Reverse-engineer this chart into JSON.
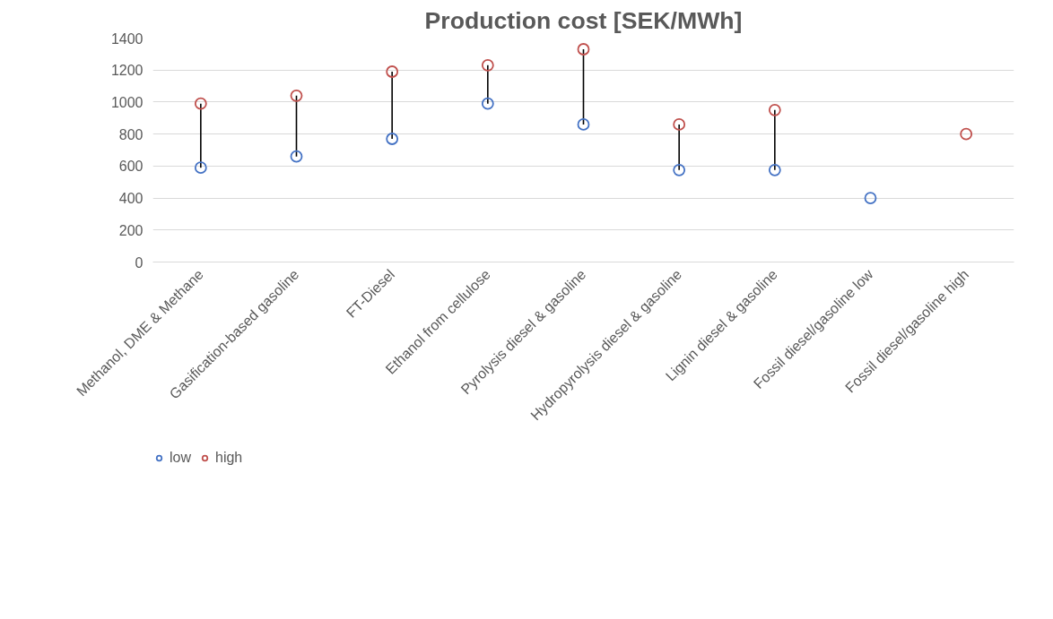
{
  "chart_data": {
    "type": "scatter",
    "title": "Production cost [SEK/MWh]",
    "categories": [
      "Methanol, DME & Methane",
      "Gasification-based gasoline",
      "FT-Diesel",
      "Ethanol from cellulose",
      "Pyrolysis diesel & gasoline",
      "Hydropyrolysis diesel & gasoline",
      "Lignin diesel & gasoline",
      "Fossil diesel/gasoline low",
      "Fossil diesel/gasoline high"
    ],
    "series": [
      {
        "type": "bar",
        "color": "#000000",
        "base": [
          590,
          660,
          770,
          990,
          860,
          575,
          575,
          null,
          null
        ],
        "values": [
          400,
          380,
          420,
          240,
          470,
          285,
          375,
          null,
          null
        ]
      },
      {
        "name": "low",
        "color": "#4472c4",
        "values": [
          590,
          660,
          770,
          990,
          860,
          575,
          575,
          400,
          null
        ]
      },
      {
        "name": "high",
        "color": "#c0504d",
        "values": [
          990,
          1040,
          1190,
          1230,
          1330,
          860,
          950,
          null,
          800
        ]
      }
    ],
    "ylim": [
      0,
      1400
    ],
    "yticks": [
      0,
      200,
      400,
      600,
      800,
      1000,
      1200,
      1400
    ],
    "grid": "y",
    "legend": "bottom left",
    "marker": "circle"
  }
}
